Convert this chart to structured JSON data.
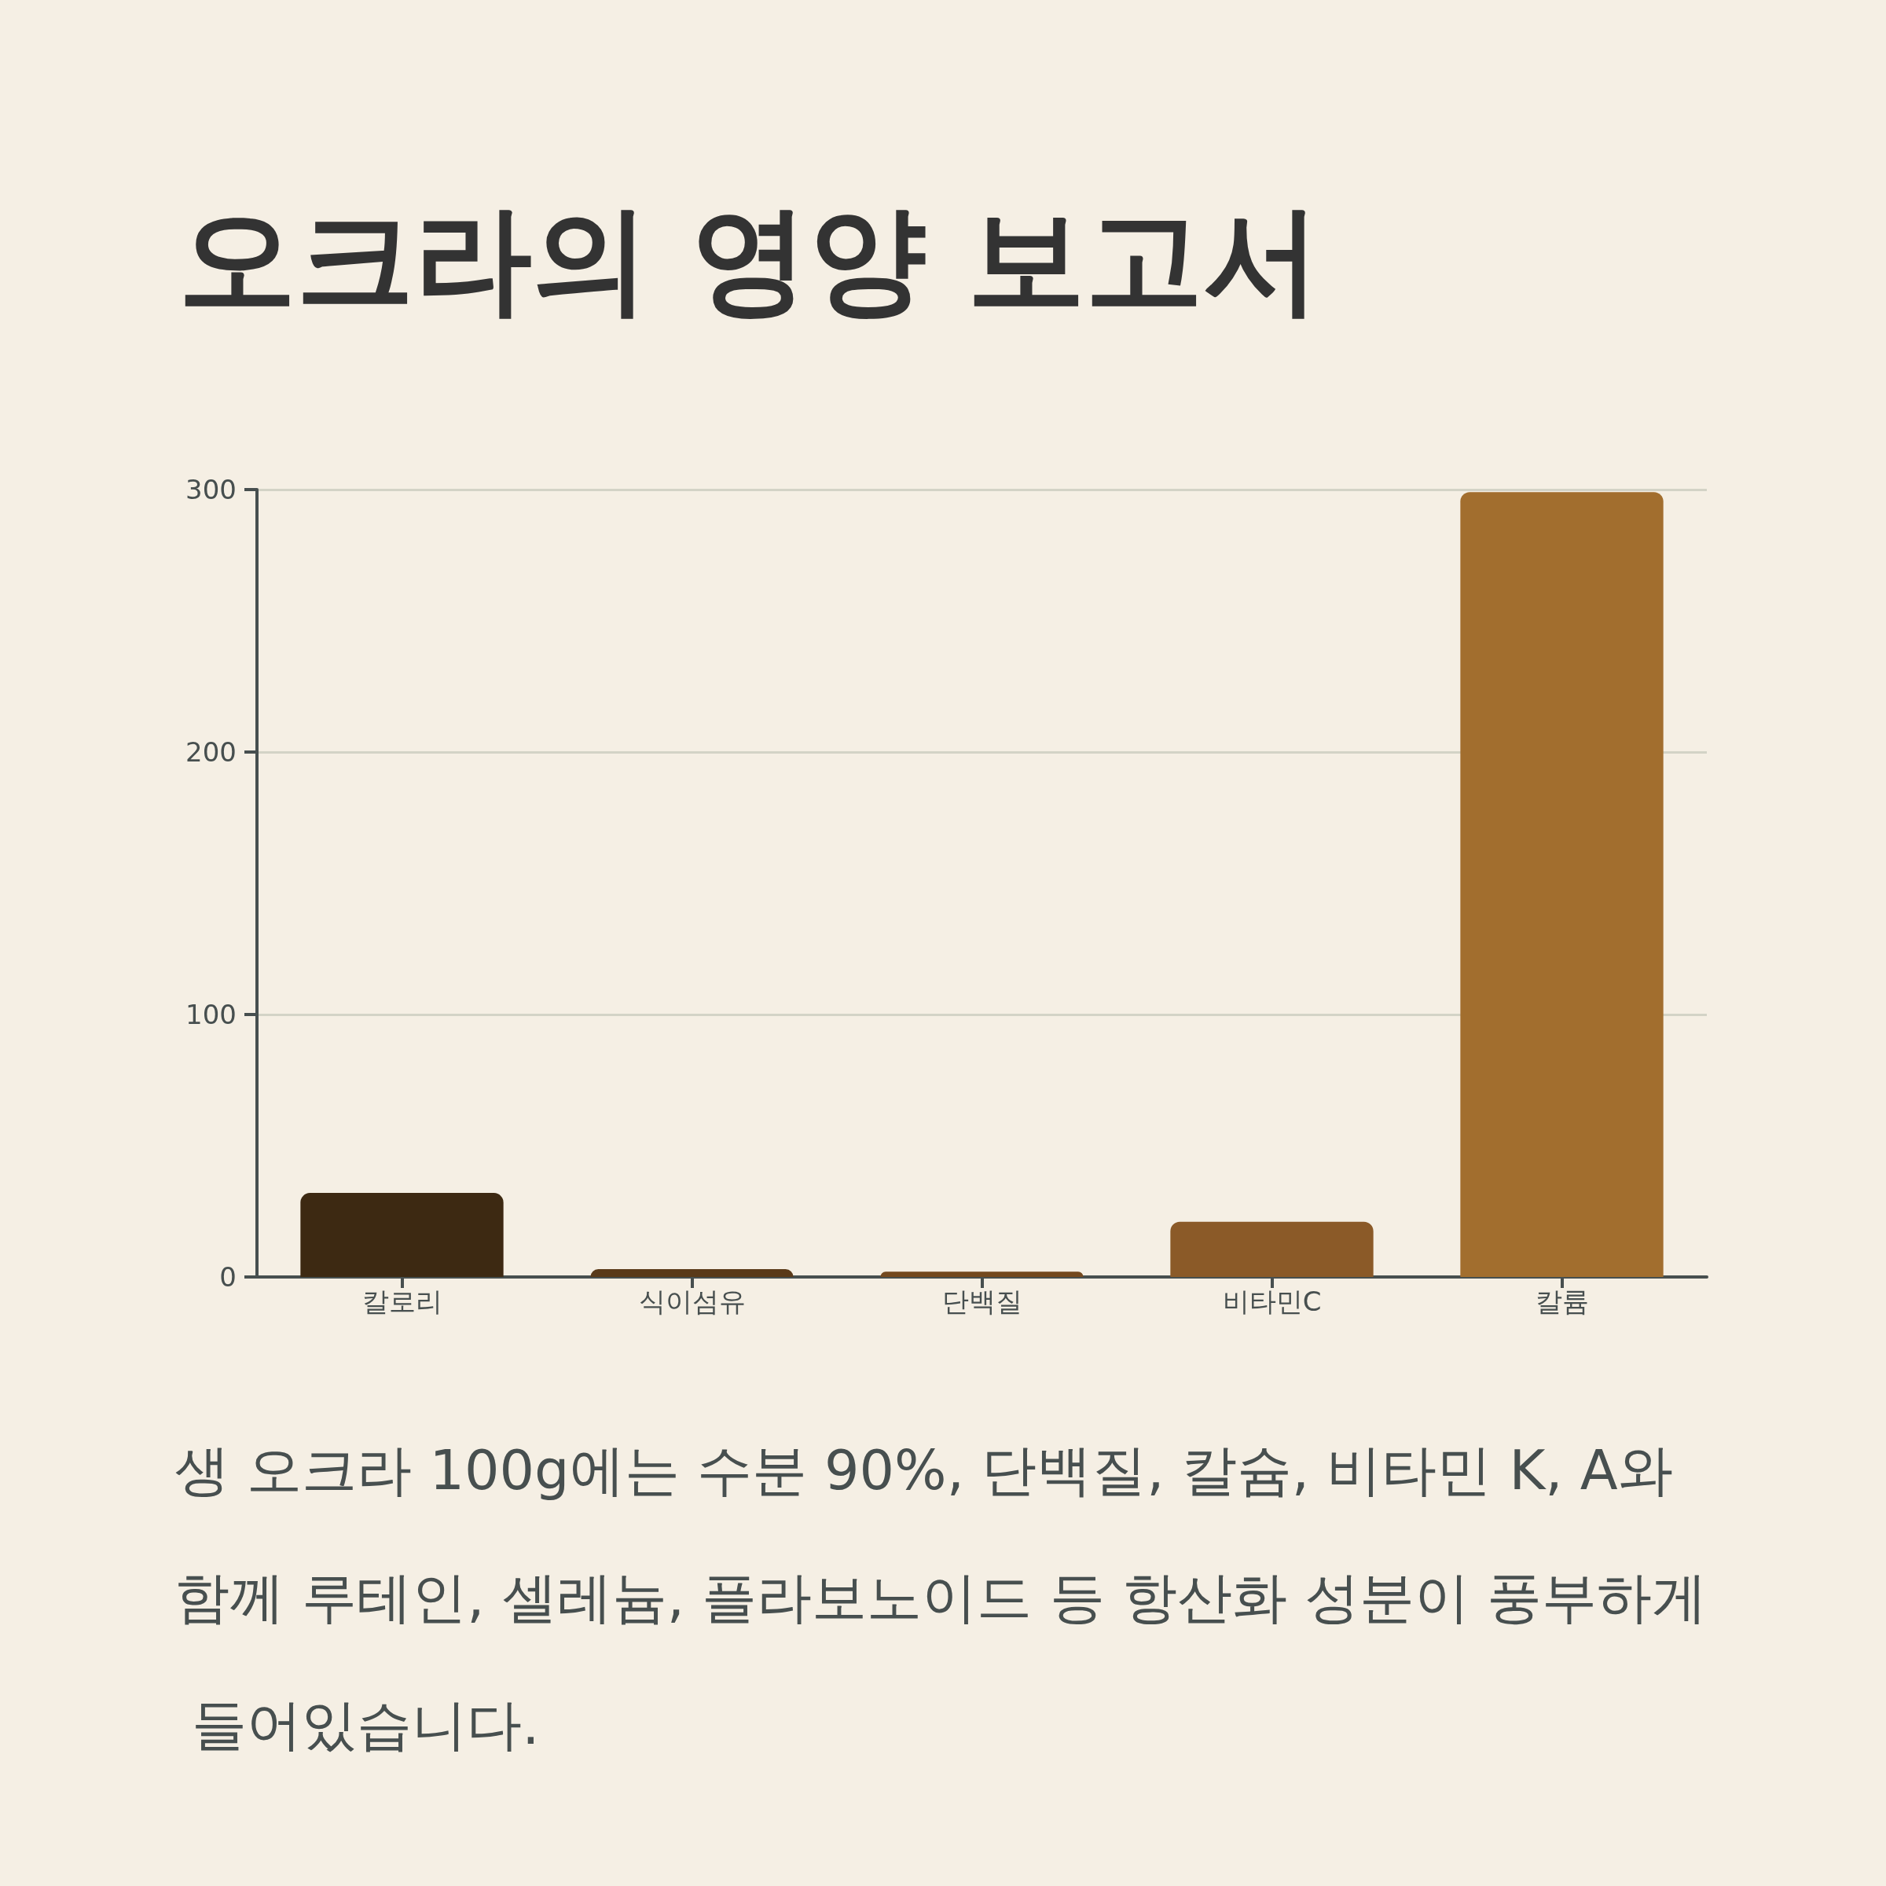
{
  "chart_data": {
    "type": "bar",
    "title": "오크라의 영양 보고서",
    "categories": [
      "칼로리",
      "식이섬유",
      "단백질",
      "비타민C",
      "칼륨"
    ],
    "values": [
      32,
      3,
      2,
      21,
      299
    ],
    "colors": [
      "#3d2912",
      "#5a3a19",
      "#74491f",
      "#8b5a28",
      "#a26e2e"
    ],
    "ylim": [
      0,
      300
    ],
    "yticks": [
      0,
      100,
      200,
      300
    ],
    "grid": "y",
    "annotations": [
      "생 오크라 100g에는 수분 90%, 단백질, 칼슘, 비타민 K, A와 함께 루테인, 셀레늄, 플라보노이드 등 항산화 성분이 풍부하게 들어있습니다."
    ]
  }
}
